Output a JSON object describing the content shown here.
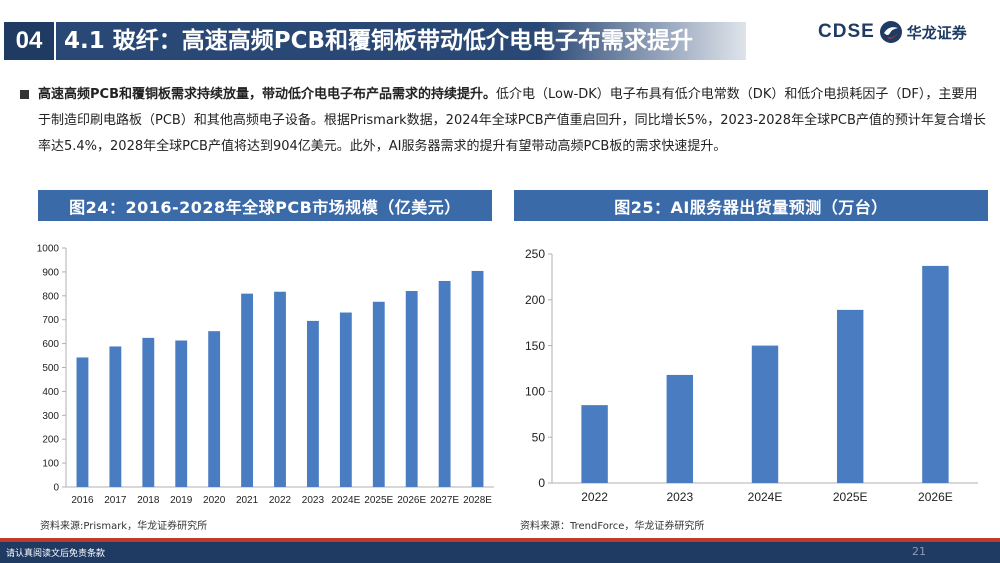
{
  "header": {
    "section_number": "04",
    "title": "4.1 玻纤：高速高频PCB和覆铜板带动低介电电子布需求提升"
  },
  "logo": {
    "brand_en": "CDSE",
    "brand_cn": "华龙证券"
  },
  "bullet": {
    "bold": "高速高频PCB和覆铜板需求持续放量，带动低介电电子布产品需求的持续提升。",
    "text": "低介电（Low-DK）电子布具有低介电常数（DK）和低介电损耗因子（DF），主要用于制造印刷电路板（PCB）和其他高频电子设备。根据Prismark数据，2024年全球PCB产值重启回升，同比增长5%，2023-2028年全球PCB产值的预计年复合增长率达5.4%，2028年全球PCB产值将达到904亿美元。此外，AI服务器需求的提升有望带动高频PCB板的需求快速提升。"
  },
  "chart_data": [
    {
      "type": "bar",
      "title": "图24：2016-2028年全球PCB市场规模（亿美元）",
      "categories": [
        "2016",
        "2017",
        "2018",
        "2019",
        "2020",
        "2021",
        "2022",
        "2023",
        "2024E",
        "2025E",
        "2026E",
        "2027E",
        "2028E"
      ],
      "values": [
        542,
        588,
        624,
        613,
        652,
        809,
        817,
        695,
        730,
        775,
        820,
        862,
        904
      ],
      "ylim": [
        0,
        1000
      ],
      "yticks": [
        "0",
        "100",
        "200",
        "300",
        "400",
        "500",
        "600",
        "700",
        "800",
        "900",
        "1000"
      ],
      "grid": false,
      "bar_color": "#4a7cc2",
      "source": "资料来源:Prismark，华龙证券研究所"
    },
    {
      "type": "bar",
      "title": "图25：AI服务器出货量预测（万台）",
      "categories": [
        "2022",
        "2023",
        "2024E",
        "2025E",
        "2026E"
      ],
      "values": [
        85,
        118,
        150,
        189,
        237
      ],
      "ylim": [
        0,
        250
      ],
      "yticks": [
        "0",
        "50",
        "100",
        "150",
        "200",
        "250"
      ],
      "grid": false,
      "bar_color": "#4a7cc2",
      "source": "资料来源：TrendForce，华龙证券研究所"
    }
  ],
  "footer": {
    "disclaimer": "请认真阅读文后免责条款",
    "page": "21"
  }
}
